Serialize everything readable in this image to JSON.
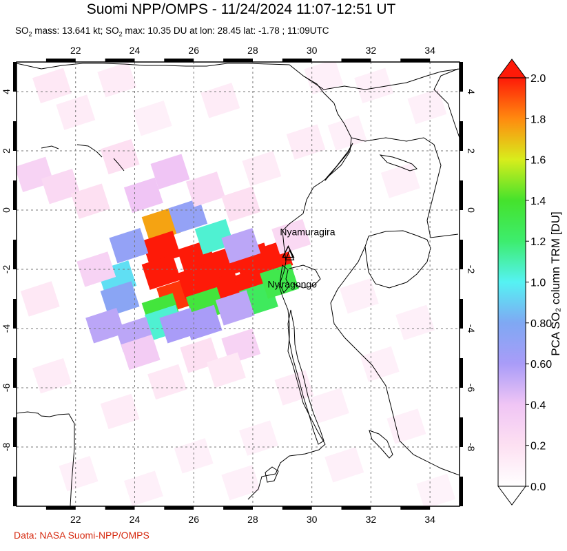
{
  "title": "Suomi NPP/OMPS - 11/24/2024 11:07-12:51 UT",
  "subtitle": {
    "mass_label": "SO",
    "mass_sub": "2",
    "mass_text": " mass: 13.641 kt; SO",
    "max_sub": "2",
    "max_text": " max: 10.35 DU at lon: 28.45 lat: -1.78 ; 11:09UTC"
  },
  "credit": "Data: NASA Suomi-NPP/OMPS",
  "map": {
    "lon_range": [
      20,
      35
    ],
    "lat_range": [
      -10,
      5
    ],
    "lon_ticks": [
      "22",
      "24",
      "26",
      "28",
      "30",
      "32",
      "34"
    ],
    "lon_values": [
      22,
      24,
      26,
      28,
      30,
      32,
      34
    ],
    "lat_ticks": [
      "4",
      "2",
      "0",
      "-2",
      "-4",
      "-6",
      "-8"
    ],
    "lat_values": [
      4,
      2,
      0,
      -2,
      -4,
      -6,
      -8
    ],
    "volcanoes": [
      {
        "name": "Nyamuragira",
        "lon": 29.2,
        "lat": -1.41
      },
      {
        "name": "Nyiragongo",
        "lon": 29.25,
        "lat": -1.52
      }
    ]
  },
  "colorbar": {
    "title": "PCA SO₂ column TRM [DU]",
    "labels": [
      "2.0",
      "1.8",
      "1.6",
      "1.4",
      "1.2",
      "1.0",
      "0.80",
      "0.60",
      "0.4",
      "0.2",
      "0.0"
    ],
    "min": 0.0,
    "max": 2.0
  },
  "so2_cells": [
    {
      "lon": 24.9,
      "lat": -0.5,
      "v": 1.75
    },
    {
      "lon": 24.9,
      "lat": -1.3,
      "v": 2.0
    },
    {
      "lon": 24.9,
      "lat": -2.1,
      "v": 2.0
    },
    {
      "lon": 25.4,
      "lat": -2.9,
      "v": 1.95
    },
    {
      "lon": 24.9,
      "lat": -3.4,
      "v": 1.35
    },
    {
      "lon": 26.1,
      "lat": -1.6,
      "v": 2.0
    },
    {
      "lon": 26.1,
      "lat": -2.4,
      "v": 2.0
    },
    {
      "lon": 27.0,
      "lat": -1.8,
      "v": 2.0
    },
    {
      "lon": 27.0,
      "lat": -2.7,
      "v": 2.0
    },
    {
      "lon": 28.0,
      "lat": -1.7,
      "v": 2.0
    },
    {
      "lon": 28.0,
      "lat": -2.5,
      "v": 2.0
    },
    {
      "lon": 28.7,
      "lat": -1.6,
      "v": 2.0
    },
    {
      "lon": 26.4,
      "lat": -3.2,
      "v": 1.35
    },
    {
      "lon": 28.2,
      "lat": -3.0,
      "v": 1.25
    },
    {
      "lon": 28.9,
      "lat": -2.4,
      "v": 1.3
    },
    {
      "lon": 26.7,
      "lat": -0.9,
      "v": 1.05
    },
    {
      "lon": 25.0,
      "lat": -3.8,
      "v": 1.05
    },
    {
      "lon": 23.4,
      "lat": -2.3,
      "v": 0.95
    },
    {
      "lon": 25.8,
      "lat": -0.2,
      "v": 0.7
    },
    {
      "lon": 23.8,
      "lat": -1.2,
      "v": 0.7
    },
    {
      "lon": 23.5,
      "lat": -3.0,
      "v": 0.75
    },
    {
      "lon": 23.0,
      "lat": -3.9,
      "v": 0.55
    },
    {
      "lon": 24.0,
      "lat": -4.2,
      "v": 0.55
    },
    {
      "lon": 25.5,
      "lat": -3.9,
      "v": 0.6
    },
    {
      "lon": 26.3,
      "lat": -3.8,
      "v": 0.6
    },
    {
      "lon": 27.4,
      "lat": -3.3,
      "v": 0.55
    },
    {
      "lon": 27.6,
      "lat": -1.2,
      "v": 0.55
    },
    {
      "lon": 25.2,
      "lat": 1.3,
      "v": 0.4
    },
    {
      "lon": 24.3,
      "lat": 0.5,
      "v": 0.4
    },
    {
      "lon": 24.2,
      "lat": -4.8,
      "v": 0.35
    },
    {
      "lon": 27.6,
      "lat": -4.6,
      "v": 0.3
    },
    {
      "lon": 22.7,
      "lat": -2.0,
      "v": 0.3
    },
    {
      "lon": 20.6,
      "lat": 1.2,
      "v": 0.3
    },
    {
      "lon": 21.5,
      "lat": 0.8,
      "v": 0.25
    },
    {
      "lon": 22.5,
      "lat": 0.3,
      "v": 0.2
    },
    {
      "lon": 23.5,
      "lat": 1.8,
      "v": 0.2
    },
    {
      "lon": 26.4,
      "lat": 0.7,
      "v": 0.25
    },
    {
      "lon": 27.6,
      "lat": 0.2,
      "v": 0.2
    },
    {
      "lon": 29.3,
      "lat": -0.9,
      "v": 0.25
    },
    {
      "lon": 26.2,
      "lat": -4.9,
      "v": 0.2
    },
    {
      "lon": 25.1,
      "lat": -5.8,
      "v": 0.15
    },
    {
      "lon": 27.1,
      "lat": -5.4,
      "v": 0.15
    },
    {
      "lon": 21.2,
      "lat": 4.2,
      "v": 0.15
    },
    {
      "lon": 23.4,
      "lat": 4.4,
      "v": 0.12
    },
    {
      "lon": 22.0,
      "lat": 3.3,
      "v": 0.12
    },
    {
      "lon": 26.9,
      "lat": 3.7,
      "v": 0.12
    },
    {
      "lon": 24.6,
      "lat": 3.1,
      "v": 0.1
    },
    {
      "lon": 30.4,
      "lat": 4.5,
      "v": 0.1
    },
    {
      "lon": 32.1,
      "lat": 4.2,
      "v": 0.1
    },
    {
      "lon": 33.9,
      "lat": 3.5,
      "v": 0.1
    },
    {
      "lon": 31.2,
      "lat": 2.6,
      "v": 0.1
    },
    {
      "lon": 33.0,
      "lat": 1.0,
      "v": 0.1
    },
    {
      "lon": 31.6,
      "lat": -2.9,
      "v": 0.1
    },
    {
      "lon": 33.5,
      "lat": -3.8,
      "v": 0.1
    },
    {
      "lon": 32.3,
      "lat": -5.2,
      "v": 0.1
    },
    {
      "lon": 30.6,
      "lat": -6.6,
      "v": 0.1
    },
    {
      "lon": 33.2,
      "lat": -7.3,
      "v": 0.1
    },
    {
      "lon": 31.1,
      "lat": -8.6,
      "v": 0.1
    },
    {
      "lon": 29.4,
      "lat": -6.0,
      "v": 0.12
    },
    {
      "lon": 28.2,
      "lat": -7.7,
      "v": 0.1
    },
    {
      "lon": 26.0,
      "lat": -8.3,
      "v": 0.1
    },
    {
      "lon": 23.5,
      "lat": -6.8,
      "v": 0.12
    },
    {
      "lon": 21.2,
      "lat": -5.6,
      "v": 0.12
    },
    {
      "lon": 20.8,
      "lat": -3.0,
      "v": 0.15
    },
    {
      "lon": 22.1,
      "lat": -8.9,
      "v": 0.1
    },
    {
      "lon": 24.3,
      "lat": -9.4,
      "v": 0.1
    },
    {
      "lon": 27.6,
      "lat": -9.2,
      "v": 0.1
    },
    {
      "lon": 34.2,
      "lat": -9.5,
      "v": 0.08
    },
    {
      "lon": 29.8,
      "lat": 2.3,
      "v": 0.12
    },
    {
      "lon": 28.3,
      "lat": 1.4,
      "v": 0.12
    }
  ]
}
